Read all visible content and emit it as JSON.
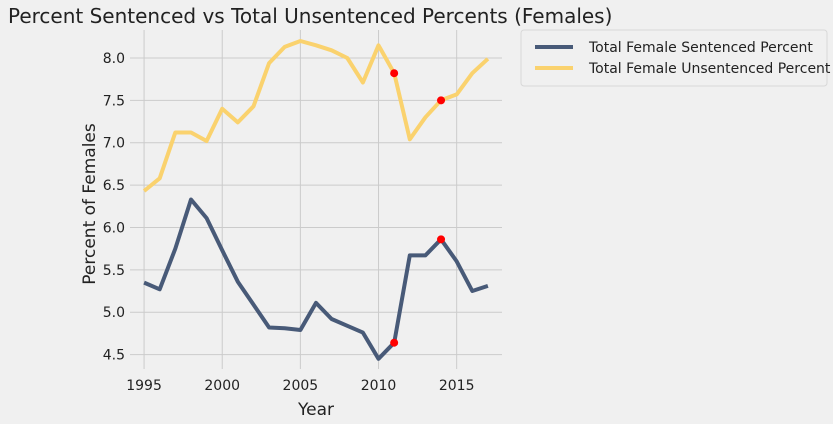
{
  "chart_data": {
    "type": "line",
    "title": "Percent Sentenced vs Total Unsentenced Percents (Females)",
    "xlabel": "Year",
    "ylabel": "Percent of Females",
    "xlim": [
      1994.1,
      2017.9
    ],
    "ylim": [
      4.33,
      8.33
    ],
    "xticks": [
      1995,
      2000,
      2005,
      2010,
      2015
    ],
    "yticks": [
      4.5,
      5.0,
      5.5,
      6.0,
      6.5,
      7.0,
      7.5,
      8.0
    ],
    "xtick_labels": [
      "1995",
      "2000",
      "2005",
      "2010",
      "2015"
    ],
    "ytick_labels": [
      "4.5",
      "5.0",
      "5.5",
      "6.0",
      "6.5",
      "7.0",
      "7.5",
      "8.0"
    ],
    "grid": true,
    "legend_position": "outside-upper-right",
    "x": [
      1995,
      1996,
      1997,
      1998,
      1999,
      2000,
      2001,
      2002,
      2003,
      2004,
      2005,
      2006,
      2007,
      2008,
      2009,
      2010,
      2011,
      2012,
      2013,
      2014,
      2015,
      2016,
      2017
    ],
    "series": [
      {
        "name": "Total Female Sentenced Percent",
        "color": "#485a78",
        "values": [
          5.35,
          5.27,
          5.75,
          6.33,
          6.11,
          5.73,
          5.36,
          5.09,
          4.82,
          4.81,
          4.79,
          5.11,
          4.92,
          4.84,
          4.76,
          4.45,
          4.64,
          5.67,
          5.67,
          5.86,
          5.6,
          5.25,
          5.31
        ]
      },
      {
        "name": "Total Female Unsentenced Percent",
        "color": "#fad26e",
        "values": [
          6.43,
          6.58,
          7.12,
          7.12,
          7.02,
          7.4,
          7.24,
          7.43,
          7.94,
          8.13,
          8.2,
          8.15,
          8.09,
          8.0,
          7.71,
          8.15,
          7.82,
          7.04,
          7.3,
          7.5,
          7.57,
          7.82,
          7.99
        ]
      }
    ],
    "highlight_points": [
      {
        "x": 2011,
        "y": 4.64
      },
      {
        "x": 2014,
        "y": 5.86
      },
      {
        "x": 2011,
        "y": 7.82
      },
      {
        "x": 2014,
        "y": 7.5
      }
    ],
    "highlight_color": "#ff0000",
    "background_color": "#f0f0f0",
    "grid_color": "#cbcbcb"
  }
}
